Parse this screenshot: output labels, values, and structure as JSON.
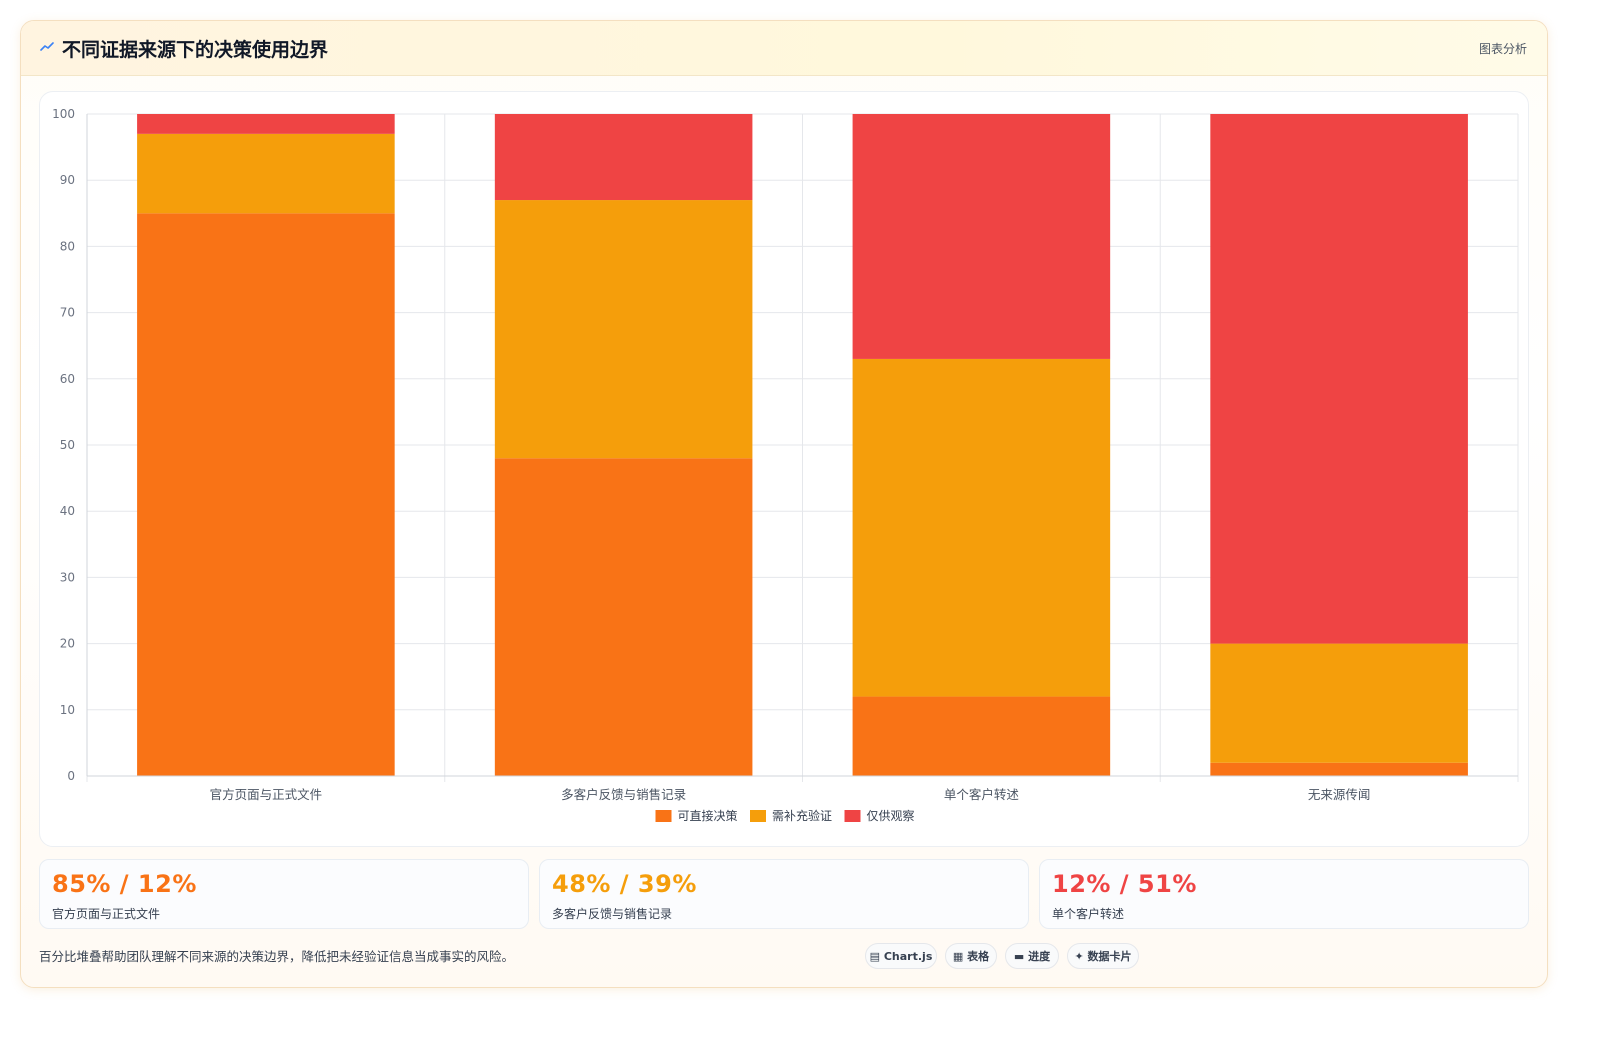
{
  "header": {
    "icon": "trend-icon",
    "title": "不同证据来源下的决策使用边界",
    "tag": "图表分析"
  },
  "chart_data": {
    "type": "bar",
    "stacked": true,
    "categories": [
      "官方页面与正式文件",
      "多客户反馈与销售记录",
      "单个客户转述",
      "无来源传闻"
    ],
    "series": [
      {
        "name": "可直接决策",
        "color": "#f97316",
        "values": [
          85,
          48,
          12,
          2
        ]
      },
      {
        "name": "需补充验证",
        "color": "#f59e0b",
        "values": [
          12,
          39,
          51,
          18
        ]
      },
      {
        "name": "仅供观察",
        "color": "#ef4444",
        "values": [
          3,
          13,
          37,
          80
        ]
      }
    ],
    "ylim": [
      0,
      100
    ],
    "yticks": [
      0,
      10,
      20,
      30,
      40,
      50,
      60,
      70,
      80,
      90,
      100
    ],
    "grid": true,
    "legend": "bottom"
  },
  "stats": [
    {
      "value": "85% / 12%",
      "label": "官方页面与正式文件",
      "color": "#f97316"
    },
    {
      "value": "48% / 39%",
      "label": "多客户反馈与销售记录",
      "color": "#f59e0b"
    },
    {
      "value": "12% / 51%",
      "label": "单个客户转述",
      "color": "#ef4444"
    }
  ],
  "footnote": "百分比堆叠帮助团队理解不同来源的决策边界，降低把未经验证信息当成事实的风险。",
  "pills": [
    {
      "icon": "chart-icon",
      "glyph": "▤",
      "label": "Chart.js"
    },
    {
      "icon": "table-icon",
      "glyph": "▦",
      "label": "表格"
    },
    {
      "icon": "progress-icon",
      "glyph": "▬",
      "label": "进度"
    },
    {
      "icon": "card-icon",
      "glyph": "✦",
      "label": "数据卡片"
    }
  ]
}
